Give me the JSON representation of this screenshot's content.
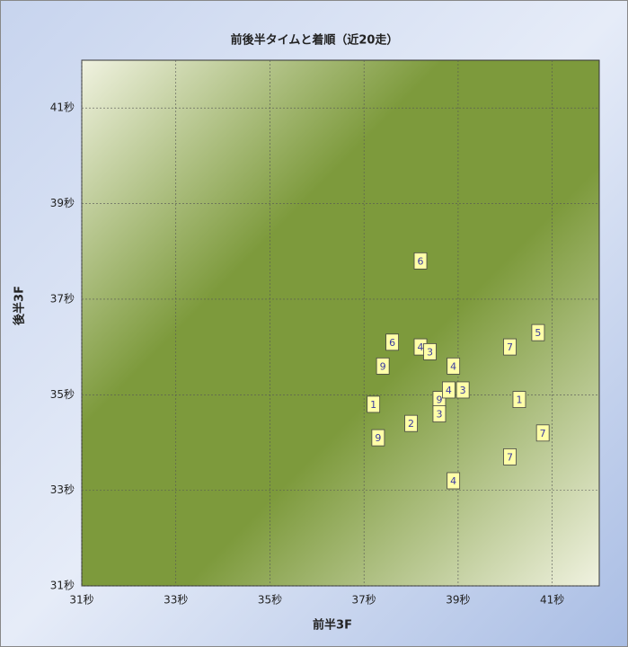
{
  "chart_data": {
    "type": "scatter",
    "title": "前後半タイムと着順（近20走）",
    "x_label": "前半3F",
    "y_label": "後半3F",
    "xlim": [
      31,
      42
    ],
    "ylim": [
      31,
      42
    ],
    "xticks": [
      {
        "value": 31,
        "label": "31秒"
      },
      {
        "value": 33,
        "label": "33秒"
      },
      {
        "value": 35,
        "label": "35秒"
      },
      {
        "value": 37,
        "label": "37秒"
      },
      {
        "value": 39,
        "label": "39秒"
      },
      {
        "value": 41,
        "label": "41秒"
      }
    ],
    "yticks": [
      {
        "value": 31,
        "label": "31秒"
      },
      {
        "value": 33,
        "label": "33秒"
      },
      {
        "value": 35,
        "label": "35秒"
      },
      {
        "value": 37,
        "label": "37秒"
      },
      {
        "value": 39,
        "label": "39秒"
      },
      {
        "value": 41,
        "label": "41秒"
      }
    ],
    "grid": true,
    "series": [
      {
        "color": "#ffffa8",
        "x": [
          38.2,
          37.6,
          38.2,
          38.4,
          37.4,
          38.9,
          40.1,
          40.7,
          37.2,
          38.6,
          38.8,
          39.1,
          38.6,
          38.0,
          40.3,
          37.3,
          40.8,
          40.1,
          38.9
        ],
        "y": [
          37.8,
          36.1,
          36.0,
          35.9,
          35.6,
          35.6,
          36.0,
          36.3,
          34.8,
          34.9,
          35.1,
          35.1,
          34.6,
          34.4,
          34.9,
          34.1,
          34.2,
          33.7,
          33.2
        ],
        "labels": [
          "6",
          "6",
          "4",
          "3",
          "9",
          "4",
          "7",
          "5",
          "1",
          "9",
          "4",
          "3",
          "3",
          "2",
          "1",
          "9",
          "7",
          "7",
          "4"
        ]
      }
    ]
  }
}
